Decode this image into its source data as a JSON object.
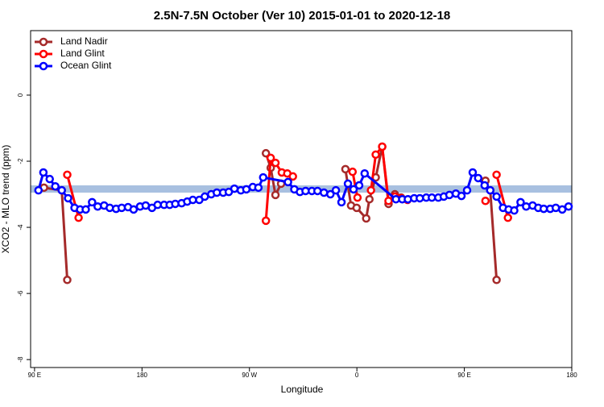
{
  "chart_data": {
    "type": "line",
    "title": "2.5N-7.5N October (Ver 10)   2015-01-01 to 2020-12-18",
    "xlabel": "Longitude",
    "ylabel": "XCO2 - MLO trend (ppm)",
    "xlim": [
      86.7,
      540
    ],
    "ylim": [
      -8.24,
      1.95
    ],
    "xticks": [
      {
        "value": 90,
        "label": "90 E"
      },
      {
        "value": 180,
        "label": "180"
      },
      {
        "value": 270,
        "label": "90 W"
      },
      {
        "value": 360,
        "label": "0"
      },
      {
        "value": 450,
        "label": "90 E"
      },
      {
        "value": 540,
        "label": "180"
      }
    ],
    "yticks": [
      0,
      -2,
      -4,
      -6,
      -8
    ],
    "band": {
      "lower": -2.95,
      "upper": -2.73,
      "color": "#a8c0e0"
    },
    "legend": "top-left",
    "series": [
      {
        "name": "Land Nadir",
        "color": "#a52a2a",
        "x": [
          97.9,
          112.8,
          117.4,
          null,
          283.8,
          287.8,
          291.8,
          296.5,
          null,
          350.4,
          355.1,
          359.8,
          367.8,
          370.5,
          375.8,
          381.2,
          386.5,
          391.8,
          397.1,
          null,
          467.7,
          null,
          471.7,
          477
        ],
        "values": [
          -2.8,
          -2.88,
          -5.59,
          null,
          -1.76,
          -2.2,
          -3.02,
          -2.68,
          null,
          -2.24,
          -3.34,
          -3.41,
          -3.73,
          -3.15,
          -2.49,
          -1.56,
          -3.29,
          -3.0,
          -3.1,
          null,
          -2.59,
          null,
          -2.88,
          -5.59
        ]
      },
      {
        "name": "Land Glint",
        "color": "#ff0000",
        "x": [
          117.4,
          126.9,
          null,
          283.8,
          287.8,
          291.8,
          297.1,
          301.7,
          306.4,
          null,
          356.4,
          360.5,
          null,
          371.8,
          375.8,
          381.2,
          386.5,
          391.8,
          397.1,
          402.4,
          null,
          467.7,
          null,
          477,
          486.5
        ],
        "values": [
          -2.41,
          -3.71,
          null,
          -3.8,
          -1.9,
          -2.05,
          -2.34,
          -2.37,
          -2.46,
          null,
          -2.32,
          -3.1,
          null,
          -2.88,
          -1.8,
          -1.56,
          -3.2,
          -3.07,
          -3.12,
          -3.17,
          null,
          -3.2,
          null,
          -2.41,
          -3.71
        ]
      },
      {
        "name": "Ocean Glint",
        "color": "#0000ff",
        "x": [
          93.3,
          97.4,
          102.7,
          107.4,
          112.8,
          118.1,
          123.5,
          128.2,
          132.9,
          138.2,
          142.9,
          148.3,
          153,
          158.3,
          163,
          168.3,
          173,
          178.4,
          183.1,
          188.4,
          193.1,
          198.5,
          203.2,
          207.9,
          213.2,
          217.9,
          222.6,
          228,
          232.6,
          238,
          242.7,
          248,
          252.7,
          257.4,
          262.8,
          267.4,
          272.8,
          277.5,
          281.5,
          302.3,
          307.6,
          312.3,
          317,
          322.3,
          327,
          332.4,
          337.8,
          342.4,
          347.1,
          352.5,
          357.2,
          361.9,
          366.5,
          392.7,
          398,
          402.7,
          408,
          412.7,
          418.1,
          422.8,
          428.2,
          432.8,
          437.5,
          442.9,
          447.6,
          452.3,
          457,
          461.6,
          467,
          471.7,
          477,
          482.4,
          487.1,
          491.8,
          497.1,
          501.8,
          507.2,
          511.9,
          516.5,
          521.9,
          526.6,
          532,
          537.3
        ],
        "values": [
          -2.88,
          -2.34,
          -2.54,
          -2.76,
          -2.88,
          -3.12,
          -3.41,
          -3.46,
          -3.46,
          -3.24,
          -3.37,
          -3.34,
          -3.41,
          -3.44,
          -3.41,
          -3.39,
          -3.46,
          -3.37,
          -3.34,
          -3.41,
          -3.32,
          -3.32,
          -3.32,
          -3.29,
          -3.27,
          -3.22,
          -3.17,
          -3.17,
          -3.07,
          -3.0,
          -2.95,
          -2.95,
          -2.93,
          -2.83,
          -2.88,
          -2.85,
          -2.78,
          -2.8,
          -2.49,
          -2.63,
          -2.85,
          -2.93,
          -2.9,
          -2.9,
          -2.9,
          -2.95,
          -3.0,
          -2.88,
          -3.24,
          -2.68,
          -2.85,
          -2.73,
          -2.37,
          -3.15,
          -3.15,
          -3.15,
          -3.12,
          -3.12,
          -3.1,
          -3.1,
          -3.1,
          -3.07,
          -3.02,
          -2.98,
          -3.05,
          -2.88,
          -2.34,
          -2.51,
          -2.73,
          -2.88,
          -3.07,
          -3.41,
          -3.46,
          -3.49,
          -3.24,
          -3.37,
          -3.34,
          -3.41,
          -3.44,
          -3.44,
          -3.41,
          -3.46,
          -3.37
        ]
      }
    ]
  }
}
